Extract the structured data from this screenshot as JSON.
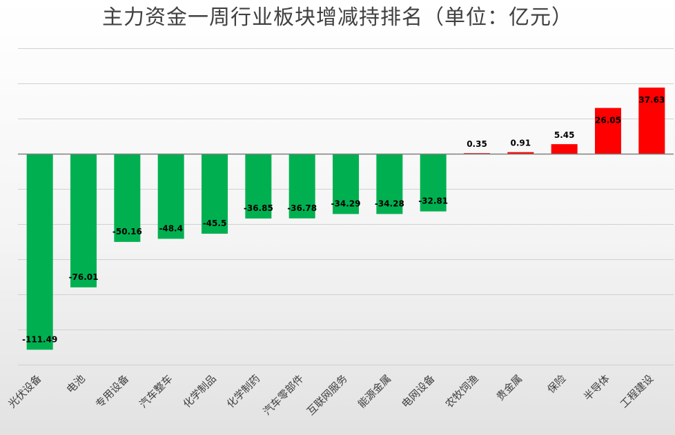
{
  "chart_data": {
    "type": "bar",
    "title": "主力资金一周行业板块增减持排名（单位：亿元）",
    "categories": [
      "光伏设备",
      "电池",
      "专用设备",
      "汽车整车",
      "化学制品",
      "化学制药",
      "汽车零部件",
      "互联网服务",
      "能源金属",
      "电网设备",
      "农牧饲渔",
      "贵金属",
      "保险",
      "半导体",
      "工程建设"
    ],
    "values": [
      -111.49,
      -76.01,
      -50.16,
      -48.4,
      -45.5,
      -36.85,
      -36.78,
      -34.29,
      -34.28,
      -32.81,
      0.35,
      0.91,
      5.45,
      26.05,
      37.63
    ],
    "value_labels": [
      "-111.49",
      "-76.01",
      "-50.16",
      "-48.4",
      "-45.5",
      "-36.85",
      "-36.78",
      "-34.29",
      "-34.28",
      "-32.81",
      "0.35",
      "0.91",
      "5.45",
      "26.05",
      "37.63"
    ],
    "ylim": [
      -120,
      60
    ],
    "ygrid_step": 20,
    "grid": true,
    "xlabel": "",
    "ylabel": "",
    "colors": {
      "positive": "#ff0000",
      "negative": "#00b050",
      "grid": "#d0d0d0",
      "axis": "#7f7f7f"
    }
  }
}
